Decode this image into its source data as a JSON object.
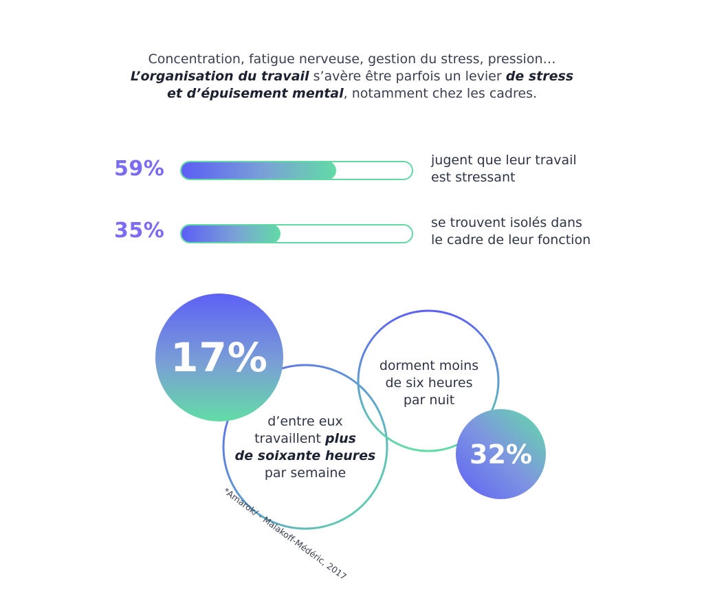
{
  "intro": {
    "line1": "Concentration, fatigue nerveuse, gestion du stress, pression…",
    "line2_bold": "L’organisation du travail",
    "line2_rest": " s’avère être parfois un levier ",
    "line2_bold2": "de stress",
    "line3_bold": "et d’épuisement mental",
    "line3_rest": ", notamment chez les cadres."
  },
  "stats": [
    {
      "value": "59%",
      "fraction": 0.59,
      "text_line1": "jugent que leur travail",
      "text_line2": "est stressant"
    },
    {
      "value": "35%",
      "fraction": 0.35,
      "text_line1": "se trouvent isolés dans",
      "text_line2": "le cadre de leur fonction"
    }
  ],
  "circles": {
    "big_value": "17%",
    "big_text_line1": "d’entre eux",
    "big_text_line2_regular": "travaillent ",
    "big_text_line2_bold": "plus",
    "big_text_line3_bold": "de soixante heures",
    "big_text_line4": "par semaine",
    "small_value": "32%",
    "small_text_line1": "dorment moins",
    "small_text_line2": "de six heures",
    "small_text_line3": "par nuit"
  },
  "source": "*Amarok/ - Malakoff-Médéric, 2017",
  "colors": {
    "accent_purple": "#5e60f5",
    "accent_green": "#62dca5",
    "percent_text": "#7b6cf2",
    "body_text": "#2f3444"
  }
}
